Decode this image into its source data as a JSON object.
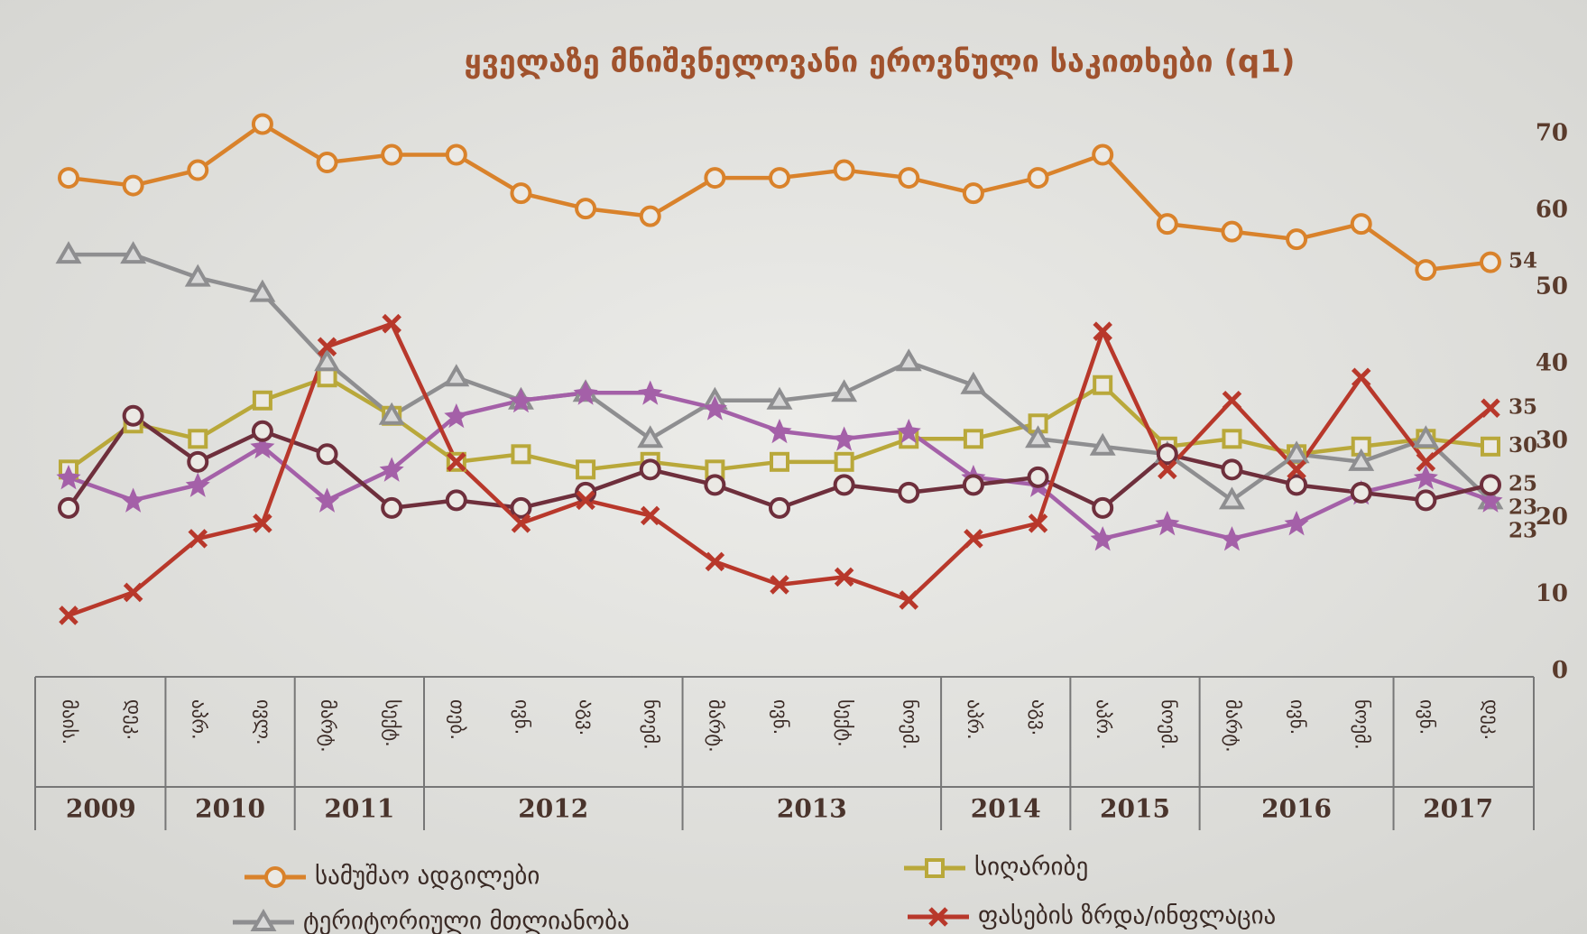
{
  "chart_data": {
    "type": "line",
    "title": "ყველაზე მნიშვნელოვანი ეროვნული საკითხები (q1)",
    "category_groups": [
      {
        "label": "2009",
        "categories": [
          "მაის.",
          "დეკ."
        ]
      },
      {
        "label": "2010",
        "categories": [
          "აპრ.",
          "ივლ."
        ]
      },
      {
        "label": "2011",
        "categories": [
          "მარტ.",
          "სექტ."
        ]
      },
      {
        "label": "2012",
        "categories": [
          "თებ.",
          "ივნ.",
          "აგვ.",
          "ნოემ."
        ]
      },
      {
        "label": "2013",
        "categories": [
          "მარტ.",
          "ივნ.",
          "სექტ.",
          "ნოემ."
        ]
      },
      {
        "label": "2014",
        "categories": [
          "აპრ.",
          "აგვ."
        ]
      },
      {
        "label": "2015",
        "categories": [
          "აპრ.",
          "ნოემ."
        ]
      },
      {
        "label": "2016",
        "categories": [
          "მარტ.",
          "ივნ.",
          "ნოემ."
        ]
      },
      {
        "label": "2017",
        "categories": [
          "ივნ.",
          "დეკ."
        ]
      }
    ],
    "ylim": [
      0,
      75
    ],
    "yticks": [
      0,
      10,
      20,
      30,
      40,
      50,
      60,
      70
    ],
    "series": [
      {
        "name": "სამუშაო ადგილები",
        "color": "#d9822b",
        "marker": "circle",
        "values": [
          65,
          64,
          66,
          72,
          67,
          68,
          68,
          63,
          61,
          60,
          65,
          65,
          66,
          65,
          63,
          65,
          68,
          59,
          58,
          57,
          59,
          53,
          54
        ]
      },
      {
        "name": "სიღარიბე",
        "color": "#b9a83a",
        "marker": "square",
        "values": [
          27,
          33,
          31,
          36,
          39,
          34,
          28,
          29,
          27,
          28,
          27,
          28,
          28,
          31,
          31,
          33,
          38,
          30,
          31,
          29,
          30,
          31,
          30
        ]
      },
      {
        "name": "ტერიტორიული მთლიანობა",
        "color": "#8e8e90",
        "marker": "triangle",
        "values": [
          55,
          55,
          52,
          50,
          41,
          34,
          39,
          36,
          37,
          31,
          36,
          36,
          37,
          41,
          38,
          31,
          30,
          29,
          23,
          29,
          28,
          31,
          23
        ]
      },
      {
        "color": "#a460a8",
        "marker": "star",
        "values": [
          26,
          23,
          25,
          30,
          23,
          27,
          34,
          36,
          37,
          37,
          35,
          32,
          31,
          32,
          26,
          25,
          18,
          20,
          18,
          20,
          24,
          26,
          23
        ]
      },
      {
        "color": "#6e2f3c",
        "marker": "circle",
        "values": [
          22,
          34,
          28,
          32,
          29,
          22,
          23,
          22,
          24,
          27,
          25,
          22,
          25,
          24,
          25,
          26,
          22,
          29,
          27,
          25,
          24,
          23,
          25
        ]
      },
      {
        "name": "ფასების ზრდა/ინფლაცია",
        "color": "#b8382b",
        "marker": "x",
        "values": [
          8,
          11,
          18,
          20,
          43,
          46,
          28,
          20,
          23,
          21,
          15,
          12,
          13,
          10,
          18,
          20,
          45,
          27,
          36,
          27,
          39,
          28,
          35
        ]
      }
    ]
  }
}
